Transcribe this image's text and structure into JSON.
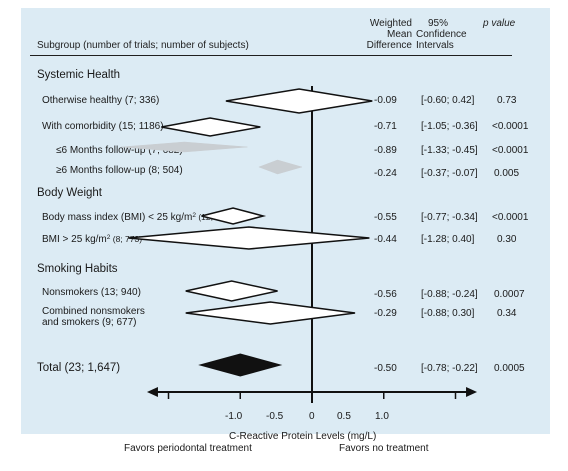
{
  "header": {
    "subgroup": "Subgroup (number of trials; number of subjects)",
    "wmd_line1": "Weighted",
    "wmd_line2": "Mean",
    "wmd_line3": "Difference",
    "ci_line1": "95%",
    "ci_line2": "Confidence",
    "ci_line3": "Intervals",
    "p_label": "p value"
  },
  "sections": {
    "systemic": "Systemic Health",
    "body": "Body Weight",
    "smoking": "Smoking Habits"
  },
  "rows": [
    {
      "label": "Otherwise healthy (7; 336)",
      "wmd": "-0.09",
      "ci": "[-0.60; 0.42]",
      "p": "0.73"
    },
    {
      "label": "With comorbidity (15; 1186)",
      "wmd": "-0.71",
      "ci": "[-1.05; -0.36]",
      "p": "<0.0001"
    },
    {
      "label": "≤6 Months follow-up (7; 682)",
      "wmd": "-0.89",
      "ci": "[-1.33; -0.45]",
      "p": "<0.0001"
    },
    {
      "label": "≥6 Months follow-up (8; 504)",
      "wmd": "-0.24",
      "ci": "[-0.37; -0.07]",
      "p": "0.005"
    },
    {
      "label_a": "Body mass index (BMI) < 25 kg/m",
      "label_sup": "2",
      "label_b": " (12; 680)",
      "wmd": "-0.55",
      "ci": "[-0.77; -0.34]",
      "p": "<0.0001"
    },
    {
      "label_a": "BMI > 25 kg/m",
      "label_sup": "2",
      "label_b": " (8; 773)",
      "wmd": "-0.44",
      "ci": "[-1.28; 0.40]",
      "p": "0.30"
    },
    {
      "label": "Nonsmokers (13; 940)",
      "wmd": "-0.56",
      "ci": "[-0.88; -0.24]",
      "p": "0.0007"
    },
    {
      "label_line1": "Combined nonsmokers",
      "label_line2": "and smokers (9; 677)",
      "wmd": "-0.29",
      "ci": "[-0.88; 0.30]",
      "p": "0.34"
    },
    {
      "label": "Total (23; 1,647)",
      "wmd": "-0.50",
      "ci": "[-0.78; -0.22]",
      "p": "0.0005"
    }
  ],
  "axis": {
    "ticks": [
      "-1.0",
      "-0.5",
      "0",
      "0.5",
      "1.0"
    ],
    "title": "C-Reactive Protein Levels (mg/L)",
    "favors_left": "Favors periodontal treatment",
    "favors_right": "Favors no treatment"
  },
  "colors": {
    "panel": "#dcebf4",
    "ink": "#111111",
    "subgroup_diamond": "#c9ced2",
    "total_diamond": "#111111",
    "outline_diamond": "#ffffff"
  },
  "chart_data": {
    "type": "forest",
    "xlabel": "C-Reactive Protein Levels (mg/L)",
    "xlim": [
      -1.0,
      1.0
    ],
    "x_ticks": [
      -1.0,
      -0.5,
      0,
      0.5,
      1.0
    ],
    "reference_line": 0,
    "entries": [
      {
        "group": "Systemic Health",
        "label": "Otherwise healthy (7; 336)",
        "estimate": -0.09,
        "ci": [
          -0.6,
          0.42
        ],
        "p": "0.73",
        "style": "outline"
      },
      {
        "group": "Systemic Health",
        "label": "With comorbidity (15; 1186)",
        "estimate": -0.71,
        "ci": [
          -1.05,
          -0.36
        ],
        "p": "<0.0001",
        "style": "outline"
      },
      {
        "group": "Systemic Health",
        "label": "≤6 Months follow-up (7; 682)",
        "estimate": -0.89,
        "ci": [
          -1.33,
          -0.45
        ],
        "p": "<0.0001",
        "style": "gray"
      },
      {
        "group": "Systemic Health",
        "label": "≥6 Months follow-up (8; 504)",
        "estimate": -0.24,
        "ci": [
          -0.37,
          -0.07
        ],
        "p": "0.005",
        "style": "gray"
      },
      {
        "group": "Body Weight",
        "label": "Body mass index (BMI) < 25 kg/m2 (12; 680)",
        "estimate": -0.55,
        "ci": [
          -0.77,
          -0.34
        ],
        "p": "<0.0001",
        "style": "outline"
      },
      {
        "group": "Body Weight",
        "label": "BMI > 25 kg/m2 (8; 773)",
        "estimate": -0.44,
        "ci": [
          -1.28,
          0.4
        ],
        "p": "0.30",
        "style": "outline"
      },
      {
        "group": "Smoking Habits",
        "label": "Nonsmokers (13; 940)",
        "estimate": -0.56,
        "ci": [
          -0.88,
          -0.24
        ],
        "p": "0.0007",
        "style": "outline"
      },
      {
        "group": "Smoking Habits",
        "label": "Combined nonsmokers and smokers (9; 677)",
        "estimate": -0.29,
        "ci": [
          -0.88,
          0.3
        ],
        "p": "0.34",
        "style": "outline"
      },
      {
        "group": "Total",
        "label": "Total (23; 1,647)",
        "estimate": -0.5,
        "ci": [
          -0.78,
          -0.22
        ],
        "p": "0.0005",
        "style": "solid"
      }
    ]
  }
}
